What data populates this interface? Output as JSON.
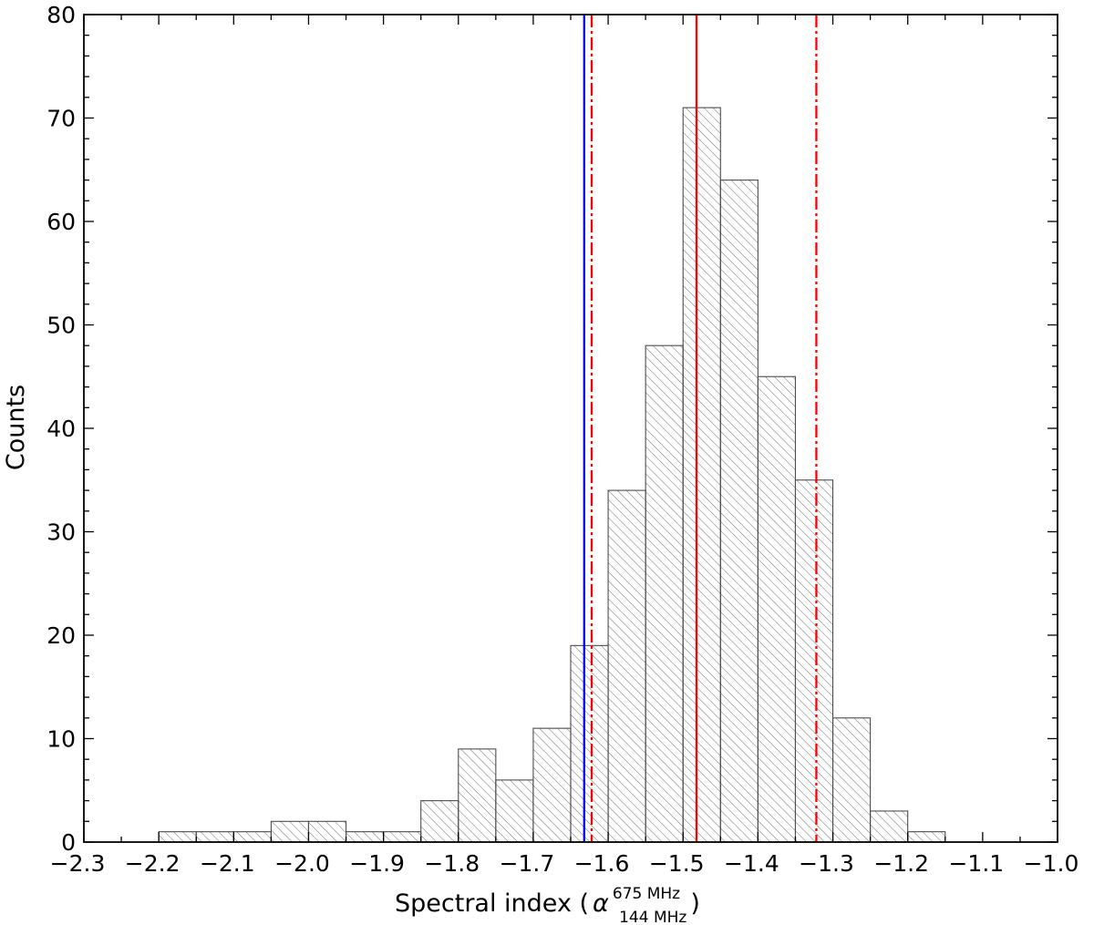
{
  "chart_data": {
    "type": "bar",
    "title": "",
    "xlabel": {
      "prefix": "Spectral index (",
      "symbol": "α",
      "superscript": "675 MHz",
      "subscript": "144 MHz",
      "suffix": ")"
    },
    "ylabel": "Counts",
    "xlim": [
      -2.3,
      -1.0
    ],
    "ylim": [
      0,
      80
    ],
    "x_ticks": [
      -2.3,
      -2.2,
      -2.1,
      -2.0,
      -1.9,
      -1.8,
      -1.7,
      -1.6,
      -1.5,
      -1.4,
      -1.3,
      -1.2,
      -1.1,
      -1.0
    ],
    "x_tick_labels": [
      "−2.3",
      "−2.2",
      "−2.1",
      "−2.0",
      "−1.9",
      "−1.8",
      "−1.7",
      "−1.6",
      "−1.5",
      "−1.4",
      "−1.3",
      "−1.2",
      "−1.1",
      "−1.0"
    ],
    "y_ticks": [
      0,
      10,
      20,
      30,
      40,
      50,
      60,
      70,
      80
    ],
    "y_tick_labels": [
      "0",
      "10",
      "20",
      "30",
      "40",
      "50",
      "60",
      "70",
      "80"
    ],
    "bin_edges": [
      -2.2,
      -2.15,
      -2.1,
      -2.05,
      -2.0,
      -1.95,
      -1.9,
      -1.85,
      -1.8,
      -1.75,
      -1.7,
      -1.65,
      -1.6,
      -1.55,
      -1.5,
      -1.45,
      -1.4,
      -1.35,
      -1.3,
      -1.25,
      -1.2,
      -1.15
    ],
    "counts": [
      1,
      1,
      1,
      2,
      2,
      1,
      1,
      4,
      9,
      6,
      11,
      19,
      34,
      48,
      71,
      64,
      45,
      35,
      12,
      3,
      1
    ],
    "vertical_lines": [
      {
        "x": -1.632,
        "color": "#0000ff",
        "style": "solid"
      },
      {
        "x": -1.622,
        "color": "#ff0000",
        "style": "dashdot"
      },
      {
        "x": -1.482,
        "color": "#ff0000",
        "style": "solid"
      },
      {
        "x": -1.322,
        "color": "#ff0000",
        "style": "dashdot"
      }
    ],
    "grid": false,
    "bar_style": "hatched",
    "colors": {
      "bar_edge": "#4d4d4d",
      "hatch": "#6e6e6e",
      "axis": "#000000"
    }
  }
}
